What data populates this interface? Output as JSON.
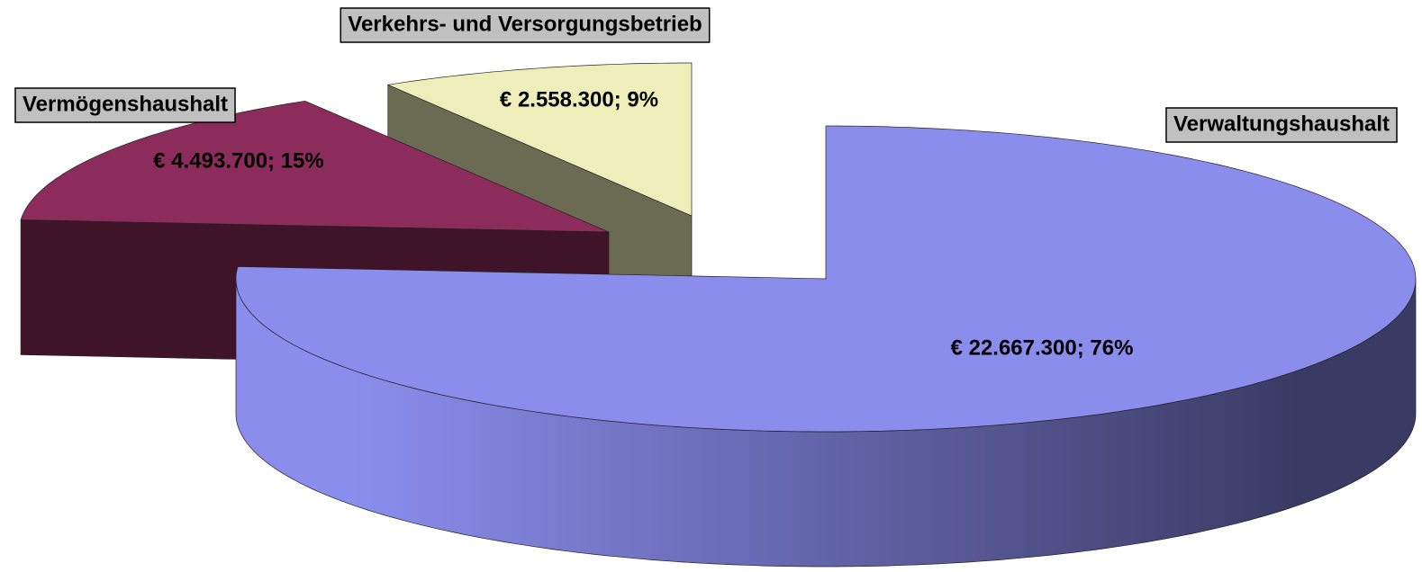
{
  "chart_data": {
    "type": "pie",
    "categories": [
      "Verwaltungshaushalt",
      "Vermögenshaushalt",
      "Verkehrs- und Versorgungsbetrieb"
    ],
    "values": [
      22667300,
      4493700,
      2558300
    ],
    "value_labels": [
      "€ 22.667.300; 76%",
      "€ 4.493.700; 15%",
      "€ 2.558.300; 9%"
    ],
    "colors": [
      "#8b8ded",
      "#8b2c5c",
      "#eeeebb"
    ]
  }
}
